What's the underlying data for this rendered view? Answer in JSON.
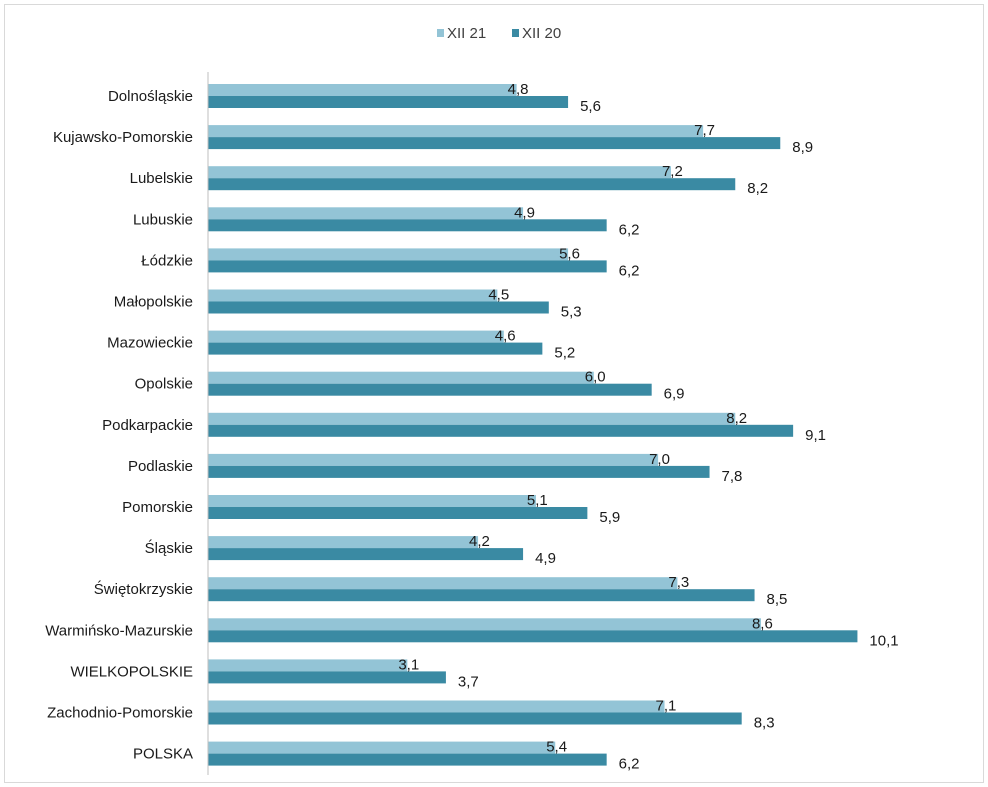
{
  "chart_data": {
    "type": "bar",
    "orientation": "horizontal",
    "categories": [
      "Dolnośląskie",
      "Kujawsko-Pomorskie",
      "Lubelskie",
      "Lubuskie",
      "Łódzkie",
      "Małopolskie",
      "Mazowieckie",
      "Opolskie",
      "Podkarpackie",
      "Podlaskie",
      "Pomorskie",
      "Śląskie",
      "Świętokrzyskie",
      "Warmińsko-Mazurskie",
      "WIELKOPOLSKIE",
      "Zachodnio-Pomorskie",
      "POLSKA"
    ],
    "series": [
      {
        "name": "XII 21",
        "color": "#93c4d6",
        "values": [
          4.8,
          7.7,
          7.2,
          4.9,
          5.6,
          4.5,
          4.6,
          6.0,
          8.2,
          7.0,
          5.1,
          4.2,
          7.3,
          8.6,
          3.1,
          7.1,
          5.4
        ],
        "labels": [
          "4,8",
          "7,7",
          "7,2",
          "4,9",
          "5,6",
          "4,5",
          "4,6",
          "6,0",
          "8,2",
          "7,0",
          "5,1",
          "4,2",
          "7,3",
          "8,6",
          "3,1",
          "7,1",
          "5,4"
        ]
      },
      {
        "name": "XII 20",
        "color": "#3a8aa3",
        "values": [
          5.6,
          8.9,
          8.2,
          6.2,
          6.2,
          5.3,
          5.2,
          6.9,
          9.1,
          7.8,
          5.9,
          4.9,
          8.5,
          10.1,
          3.7,
          8.3,
          6.2
        ],
        "labels": [
          "5,6",
          "8,9",
          "8,2",
          "6,2",
          "6,2",
          "5,3",
          "5,2",
          "6,9",
          "9,1",
          "7,8",
          "5,9",
          "4,9",
          "8,5",
          "10,1",
          "3,7",
          "8,3",
          "6,2"
        ]
      }
    ],
    "xlim": [
      0,
      11
    ],
    "grid": false,
    "legend_position": "top-center"
  }
}
